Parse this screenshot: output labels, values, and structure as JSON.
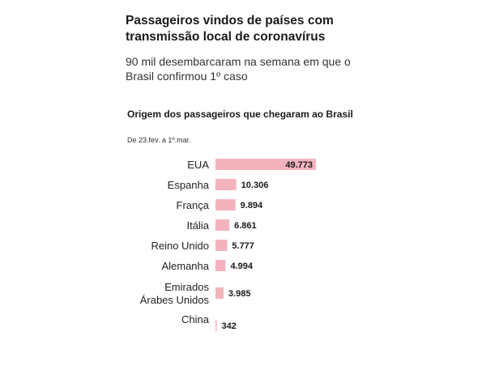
{
  "header": {
    "title": "Passageiros vindos de países com transmissão local de coronavírus",
    "subtitle": "90 mil desembarcaram na semana em que o Brasil confirmou 1º caso"
  },
  "chart_data": {
    "type": "bar",
    "orientation": "horizontal",
    "title": "Origem dos passageiros que chegaram ao Brasil",
    "subtitle": "De 23.fev. a 1º.mar.",
    "categories": [
      "EUA",
      "Espanha",
      "França",
      "Itália",
      "Reino Unido",
      "Alemanha",
      "Emirados Árabes Unidos",
      "China"
    ],
    "category_lines": [
      [
        "EUA"
      ],
      [
        "Espanha"
      ],
      [
        "França"
      ],
      [
        "Itália"
      ],
      [
        "Reino Unido"
      ],
      [
        "Alemanha"
      ],
      [
        "Emirados",
        "Árabes Unidos"
      ],
      [
        "China"
      ]
    ],
    "values": [
      49773,
      10306,
      9894,
      6861,
      5777,
      4994,
      3985,
      342
    ],
    "value_labels": [
      "49.773",
      "10.306",
      "9.894",
      "6.861",
      "5.777",
      "4.994",
      "3.985",
      "342"
    ],
    "colors": {
      "bar": "#f3b3bd",
      "text": "#1a1a1a"
    },
    "xlim": [
      0,
      49773
    ],
    "grid": false,
    "legend": "none"
  }
}
